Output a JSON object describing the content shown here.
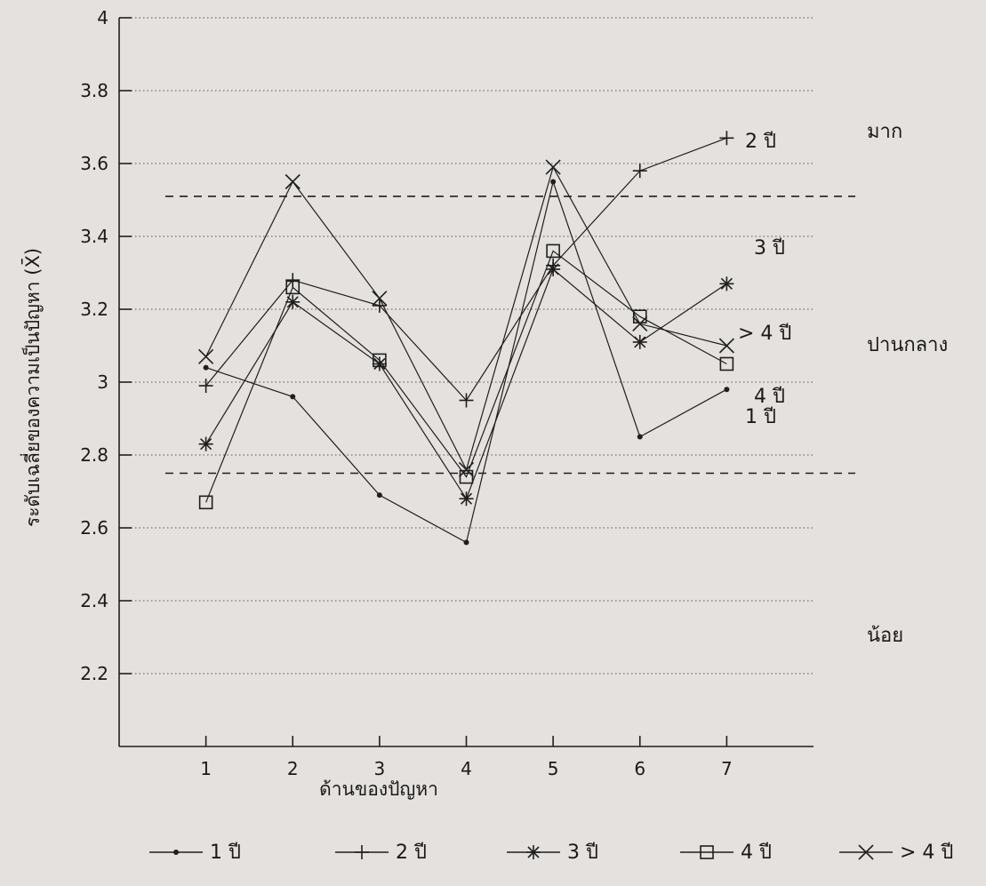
{
  "chart_data": {
    "type": "line",
    "title": "",
    "xlabel": "ด้านของปัญหา",
    "ylabel": "ระดับเฉลี่ยของความเป็นปัญหา (X̄)",
    "x": [
      "1",
      "2",
      "3",
      "4",
      "5",
      "6",
      "7"
    ],
    "y_ticks": [
      "2.2",
      "2.4",
      "2.6",
      "2.8",
      "3",
      "3.2",
      "3.4",
      "3.6",
      "3.8",
      "4"
    ],
    "ylim": [
      2,
      4
    ],
    "xlim": [
      0,
      8
    ],
    "grid": "horizontal dotted",
    "thresholds": [
      3.51,
      2.75
    ],
    "level_labels": [
      {
        "text": "มาก",
        "y": 3.8
      },
      {
        "text": "ปานกลาง",
        "y": 3.1
      },
      {
        "text": "น้อย",
        "y": 2.33
      }
    ],
    "series": [
      {
        "name": "1 ปี",
        "marker": "dot",
        "values": [
          3.04,
          2.96,
          2.69,
          2.56,
          3.55,
          2.85,
          2.98
        ],
        "end_label": "1 ปี"
      },
      {
        "name": "2 ปี",
        "marker": "plus",
        "values": [
          2.99,
          3.28,
          3.21,
          2.95,
          3.32,
          3.58,
          3.67
        ],
        "end_label": "2 ปี"
      },
      {
        "name": "3 ปี",
        "marker": "asterisk",
        "values": [
          2.83,
          3.22,
          3.05,
          2.68,
          3.31,
          3.11,
          3.27
        ],
        "end_label": "3 ปี"
      },
      {
        "name": "4 ปี",
        "marker": "square",
        "values": [
          2.67,
          3.26,
          3.06,
          2.74,
          3.36,
          3.18,
          3.05
        ],
        "end_label": "4 ปี"
      },
      {
        "name": "> 4 ปี",
        "marker": "x",
        "values": [
          3.07,
          3.55,
          3.23,
          2.76,
          3.59,
          3.16,
          3.1
        ],
        "end_label": "> 4 ปี"
      }
    ],
    "legend": "bottom"
  }
}
